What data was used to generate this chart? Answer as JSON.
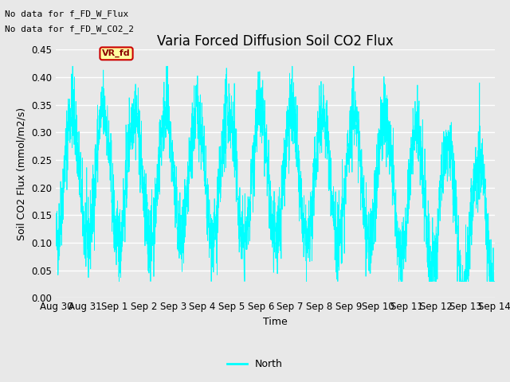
{
  "title": "Varia Forced Diffusion Soil CO2 Flux",
  "xlabel": "Time",
  "ylabel": "Soil CO2 Flux (mmol/m2/s)",
  "ylim": [
    0.0,
    0.45
  ],
  "yticks": [
    0.0,
    0.05,
    0.1,
    0.15,
    0.2,
    0.25,
    0.3,
    0.35,
    0.4,
    0.45
  ],
  "line_color": "#00FFFF",
  "fig_bg_color": "#E8E8E8",
  "plot_bg_color": "#E8E8E8",
  "annotation_lines": [
    "No data for f_FD_W_Flux",
    "No data for f_FD_W_CO2_2"
  ],
  "legend_label": "North",
  "vr_fd_label": "VR_fd",
  "x_tick_labels": [
    "Aug 30",
    "Aug 31",
    "Sep 1",
    "Sep 2",
    "Sep 3",
    "Sep 4",
    "Sep 5",
    "Sep 6",
    "Sep 7",
    "Sep 8",
    "Sep 9",
    "Sep 10",
    "Sep 11",
    "Sep 12",
    "Sep 13",
    "Sep 14"
  ],
  "seed": 42,
  "n_points": 3000,
  "num_cycles": 14,
  "base_mean": 0.22,
  "amplitude": 0.12,
  "noise_scale": 0.035,
  "title_fontsize": 12,
  "label_fontsize": 9,
  "tick_fontsize": 8.5,
  "annot_fontsize": 8,
  "vr_fontsize": 8
}
